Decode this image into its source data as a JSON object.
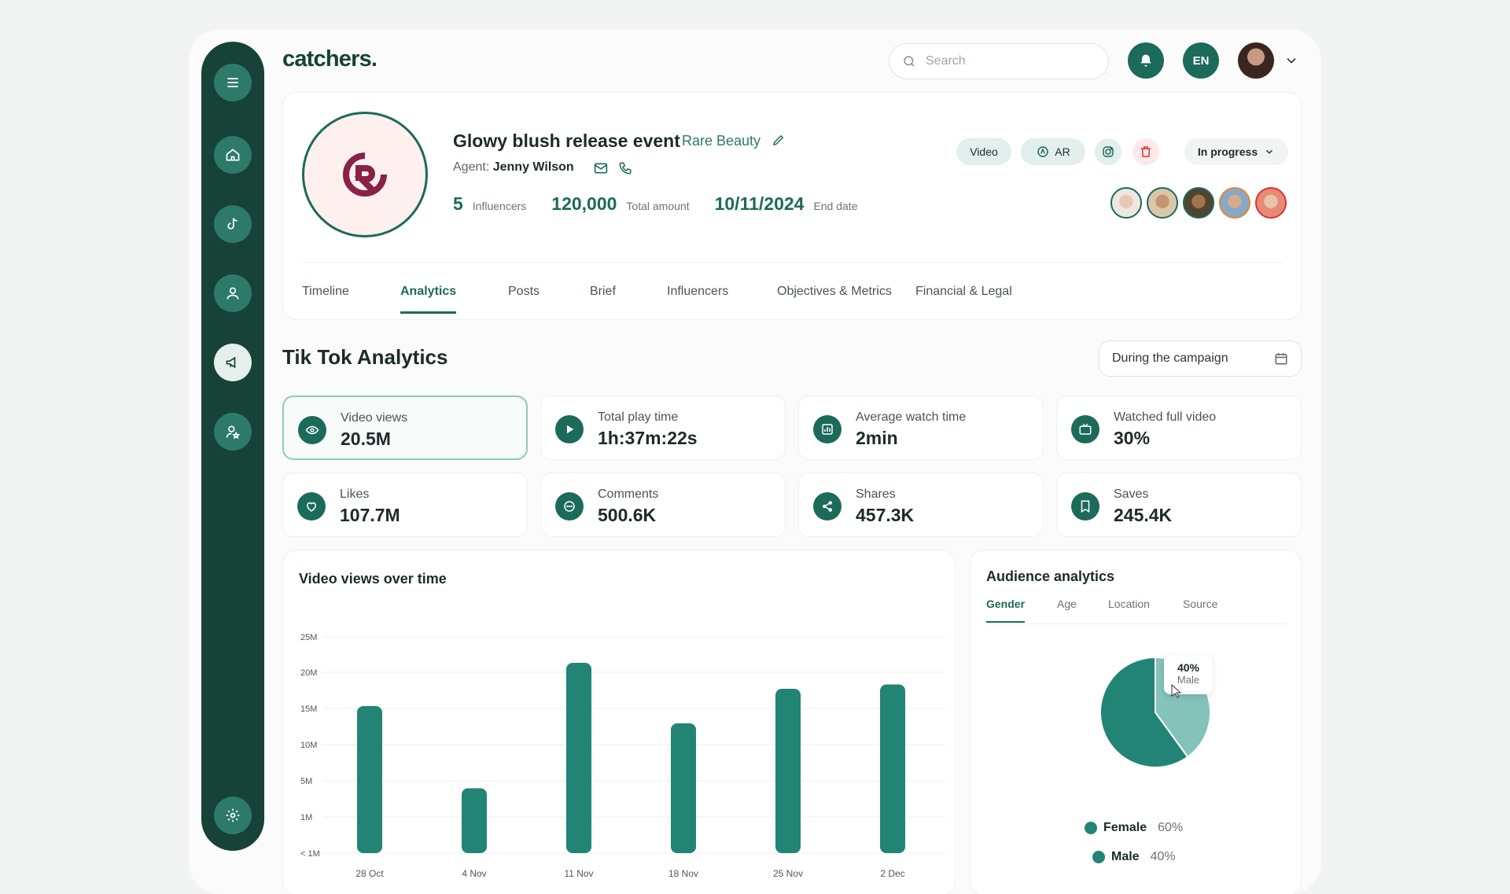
{
  "app": {
    "logo": "catchers."
  },
  "header": {
    "search_placeholder": "Search",
    "lang": "EN"
  },
  "campaign": {
    "title": "Glowy blush release event",
    "brand": "Rare Beauty",
    "agent_label": "Agent:",
    "agent_name": "Jenny Wilson",
    "stats": [
      {
        "value": "5",
        "label": "Influencers"
      },
      {
        "value": "120,000",
        "label": "Total amount"
      },
      {
        "value": "10/11/2024",
        "label": "End date"
      }
    ],
    "chips": {
      "video": "Video",
      "ar": "AR"
    },
    "status": "In progress"
  },
  "tabs": [
    "Timeline",
    "Analytics",
    "Posts",
    "Brief",
    "Influencers",
    "Objectives & Metrics",
    "Financial & Legal"
  ],
  "analytics": {
    "title": "Tik Tok Analytics",
    "period": "During the campaign",
    "metrics": [
      {
        "label": "Video views",
        "value": "20.5M",
        "icon": "eye-icon"
      },
      {
        "label": "Total play time",
        "value": "1h:37m:22s",
        "icon": "play-icon"
      },
      {
        "label": "Average watch time",
        "value": "2min",
        "icon": "bar-chart-icon"
      },
      {
        "label": "Watched full video",
        "value": "30%",
        "icon": "tv-icon"
      },
      {
        "label": "Likes",
        "value": "107.7M",
        "icon": "heart-icon"
      },
      {
        "label": "Comments",
        "value": "500.6K",
        "icon": "comment-icon"
      },
      {
        "label": "Shares",
        "value": "457.3K",
        "icon": "share-icon"
      },
      {
        "label": "Saves",
        "value": "245.4K",
        "icon": "bookmark-icon"
      }
    ]
  },
  "chart_data": {
    "type": "bar",
    "title": "Video views over time",
    "categories": [
      "28 Oct",
      "4 Nov",
      "11 Nov",
      "18 Nov",
      "25 Nov",
      "2 Dec"
    ],
    "values": [
      17,
      7.5,
      22,
      15,
      19,
      19.5
    ],
    "y_ticks": [
      "< 1M",
      "1M",
      "5M",
      "10M",
      "15M",
      "20M",
      "25M"
    ],
    "ylim": [
      0,
      25
    ],
    "grid": true,
    "color": "#228474"
  },
  "audience": {
    "title": "Audience analytics",
    "tabs": [
      "Gender",
      "Age",
      "Location",
      "Source"
    ],
    "pie": [
      {
        "name": "Female",
        "value": 60,
        "display": "60%",
        "color": "#228474"
      },
      {
        "name": "Male",
        "value": 40,
        "display": "40%",
        "color": "#83c3b9"
      }
    ],
    "tooltip": {
      "value": "40%",
      "label": "Male"
    }
  }
}
